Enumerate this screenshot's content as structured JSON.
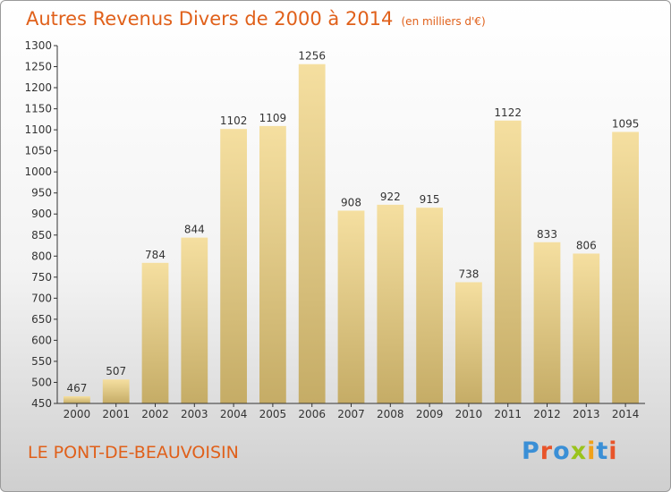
{
  "title": "Autres Revenus Divers de 2000 à 2014",
  "unit": "(en milliers d'€)",
  "location": "LE PONT-DE-BEAUVOISIN",
  "brand": {
    "text": "Proxiti",
    "letter_colors": [
      "#3a8fd6",
      "#e8542a",
      "#3a8fd6",
      "#9ac31c",
      "#f0a11a",
      "#3a8fd6",
      "#e8542a"
    ]
  },
  "chart_data": {
    "type": "bar",
    "title": "Autres Revenus Divers de 2000 à 2014",
    "categories": [
      "2000",
      "2001",
      "2002",
      "2003",
      "2004",
      "2005",
      "2006",
      "2007",
      "2008",
      "2009",
      "2010",
      "2011",
      "2012",
      "2013",
      "2014"
    ],
    "values": [
      467,
      507,
      784,
      844,
      1102,
      1109,
      1256,
      908,
      922,
      915,
      738,
      1122,
      833,
      806,
      1095
    ],
    "ylim": [
      450,
      1300
    ],
    "yticks": [
      450,
      500,
      550,
      600,
      650,
      700,
      750,
      800,
      850,
      900,
      950,
      1000,
      1050,
      1100,
      1150,
      1200,
      1250,
      1300
    ],
    "grid": false,
    "legend": "none",
    "bar_color_light": "#f5dfa0",
    "bar_color_dark": "#c5ac66",
    "axis_color": "#333333"
  }
}
